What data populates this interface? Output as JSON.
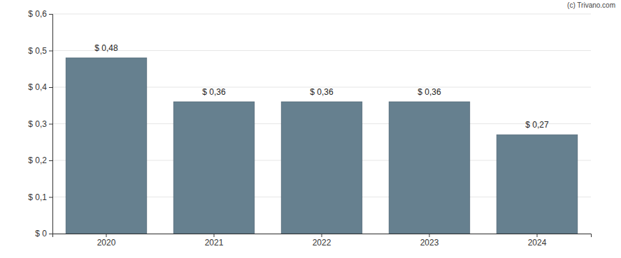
{
  "chart_data": {
    "type": "bar",
    "annotation": "(c) Trivano.com",
    "categories": [
      "2020",
      "2021",
      "2022",
      "2023",
      "2024"
    ],
    "values": [
      0.48,
      0.36,
      0.36,
      0.36,
      0.27
    ],
    "value_labels": [
      "$ 0,48",
      "$ 0,36",
      "$ 0,36",
      "$ 0,36",
      "$ 0,27"
    ],
    "data_labels": true,
    "color": "#66808f",
    "ylim": [
      0,
      0.6
    ],
    "yticks": [
      {
        "value": 0,
        "label": "$ 0"
      },
      {
        "value": 0.1,
        "label": "$ 0,1"
      },
      {
        "value": 0.2,
        "label": "$ 0,2"
      },
      {
        "value": 0.3,
        "label": "$ 0,3"
      },
      {
        "value": 0.4,
        "label": "$ 0,4"
      },
      {
        "value": 0.5,
        "label": "$ 0,5"
      },
      {
        "value": 0.6,
        "label": "$ 0,6"
      }
    ],
    "grid": true
  }
}
